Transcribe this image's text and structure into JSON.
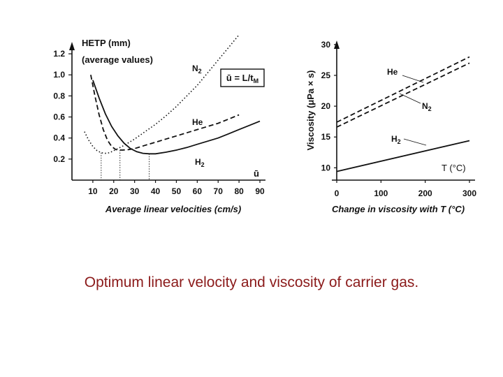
{
  "caption": "Optimum linear velocity and viscosity of carrier gas.",
  "chart_data": [
    {
      "type": "line",
      "ylabel": "HETP (mm)",
      "ylabel_note": "(average values)",
      "xlabel": "Average linear velocities (cm/s)",
      "x_symbol": "ū",
      "formula": "ū = L/tM",
      "x_ticks": [
        10,
        20,
        30,
        40,
        50,
        60,
        70,
        80,
        90
      ],
      "y_ticks": [
        0.2,
        0.4,
        0.6,
        0.8,
        1.0,
        1.2
      ],
      "y_tick_labels": [
        "0.2",
        "0.4",
        "0.6",
        "0.8",
        "1.0",
        "1.2"
      ],
      "xlim": [
        0,
        92
      ],
      "ylim": [
        0,
        1.3
      ],
      "series": [
        {
          "name": "N2",
          "style": "dotted",
          "x": [
            6,
            8,
            10,
            12,
            14,
            16,
            18,
            20,
            22,
            25,
            30,
            35,
            40,
            45,
            50,
            55,
            60,
            65,
            70,
            75,
            80
          ],
          "y": [
            0.46,
            0.38,
            0.32,
            0.28,
            0.26,
            0.255,
            0.26,
            0.28,
            0.3,
            0.33,
            0.39,
            0.46,
            0.53,
            0.61,
            0.7,
            0.8,
            0.9,
            1.02,
            1.14,
            1.26,
            1.38
          ],
          "min_x": 14
        },
        {
          "name": "He",
          "style": "dashed",
          "x": [
            9,
            11,
            13,
            15,
            17,
            19,
            21,
            24,
            27,
            30,
            35,
            40,
            45,
            50,
            55,
            60,
            65,
            70,
            75,
            80
          ],
          "y": [
            1.0,
            0.8,
            0.62,
            0.48,
            0.38,
            0.32,
            0.29,
            0.285,
            0.29,
            0.3,
            0.33,
            0.36,
            0.39,
            0.42,
            0.45,
            0.48,
            0.51,
            0.54,
            0.58,
            0.62
          ],
          "min_x": 23
        },
        {
          "name": "H2",
          "style": "solid",
          "x": [
            10,
            13,
            16,
            19,
            22,
            25,
            28,
            31,
            34,
            37,
            40,
            45,
            50,
            55,
            60,
            65,
            70,
            75,
            80,
            85,
            90
          ],
          "y": [
            0.95,
            0.78,
            0.63,
            0.51,
            0.42,
            0.35,
            0.3,
            0.27,
            0.255,
            0.25,
            0.25,
            0.265,
            0.285,
            0.31,
            0.34,
            0.37,
            0.4,
            0.44,
            0.48,
            0.52,
            0.56
          ],
          "min_x": 37
        }
      ]
    },
    {
      "type": "line",
      "ylabel": "Viscosity (μPa × s)",
      "xlabel": "Change in viscosity with T (°C)",
      "axis_label_x": "T (°C)",
      "x_ticks": [
        0,
        100,
        200,
        300
      ],
      "y_ticks": [
        10,
        15,
        20,
        25,
        30
      ],
      "xlim": [
        0,
        300
      ],
      "ylim": [
        8,
        31
      ],
      "series": [
        {
          "name": "He",
          "style": "dashed",
          "x": [
            0,
            300
          ],
          "y": [
            17.4,
            28.0
          ]
        },
        {
          "name": "N2",
          "style": "dashed",
          "x": [
            0,
            300
          ],
          "y": [
            16.6,
            27.0
          ]
        },
        {
          "name": "H2",
          "style": "solid",
          "x": [
            0,
            300
          ],
          "y": [
            9.4,
            14.4
          ]
        }
      ]
    }
  ]
}
